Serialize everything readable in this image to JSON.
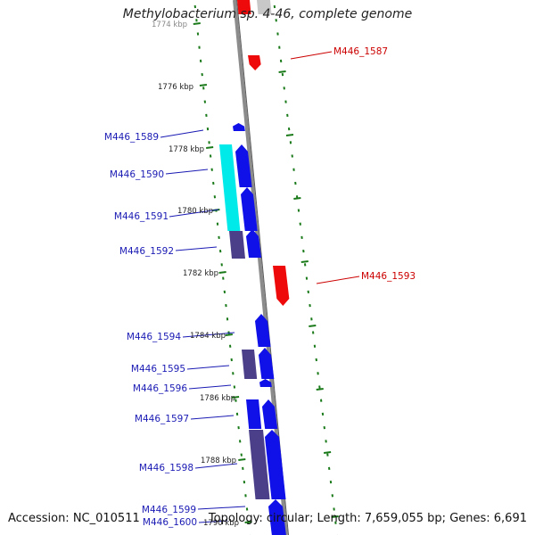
{
  "title": "Methylobacterium sp. 4-46, complete genome",
  "footer": {
    "accession": "Accession: NC_010511",
    "topology": "Topology: circular",
    "length": "Length: 7,659,055 bp",
    "genes": "Genes: 6,691"
  },
  "colors": {
    "backbone": "#8c8c8c",
    "tick": "#1a7a1a",
    "forward_gene": "#1010e8",
    "forward_label": "#1a1ab4",
    "reverse_gene": "#ee0a0a",
    "reverse_label": "#cc0000",
    "cyan_gene": "#00eaea",
    "slate_gene": "#4a3f88",
    "gray_gene": "#c8c8c8"
  },
  "ruler": {
    "unit": "kbp",
    "labels": [
      "1774 kbp",
      "1776 kbp",
      "1778 kbp",
      "1780 kbp",
      "1782 kbp",
      "1784 kbp",
      "1786 kbp",
      "1788 kbp",
      "1790 kbp"
    ]
  },
  "genes": [
    {
      "label": "M446_1587",
      "strand": "reverse"
    },
    {
      "label": "M446_1589",
      "strand": "forward"
    },
    {
      "label": "M446_1590",
      "strand": "forward"
    },
    {
      "label": "M446_1591",
      "strand": "forward"
    },
    {
      "label": "M446_1592",
      "strand": "forward"
    },
    {
      "label": "M446_1593",
      "strand": "reverse"
    },
    {
      "label": "M446_1594",
      "strand": "forward"
    },
    {
      "label": "M446_1595",
      "strand": "forward"
    },
    {
      "label": "M446_1596",
      "strand": "forward"
    },
    {
      "label": "M446_1597",
      "strand": "forward"
    },
    {
      "label": "M446_1598",
      "strand": "forward"
    },
    {
      "label": "M446_1599",
      "strand": "forward"
    },
    {
      "label": "M446_1600",
      "strand": "forward"
    }
  ]
}
